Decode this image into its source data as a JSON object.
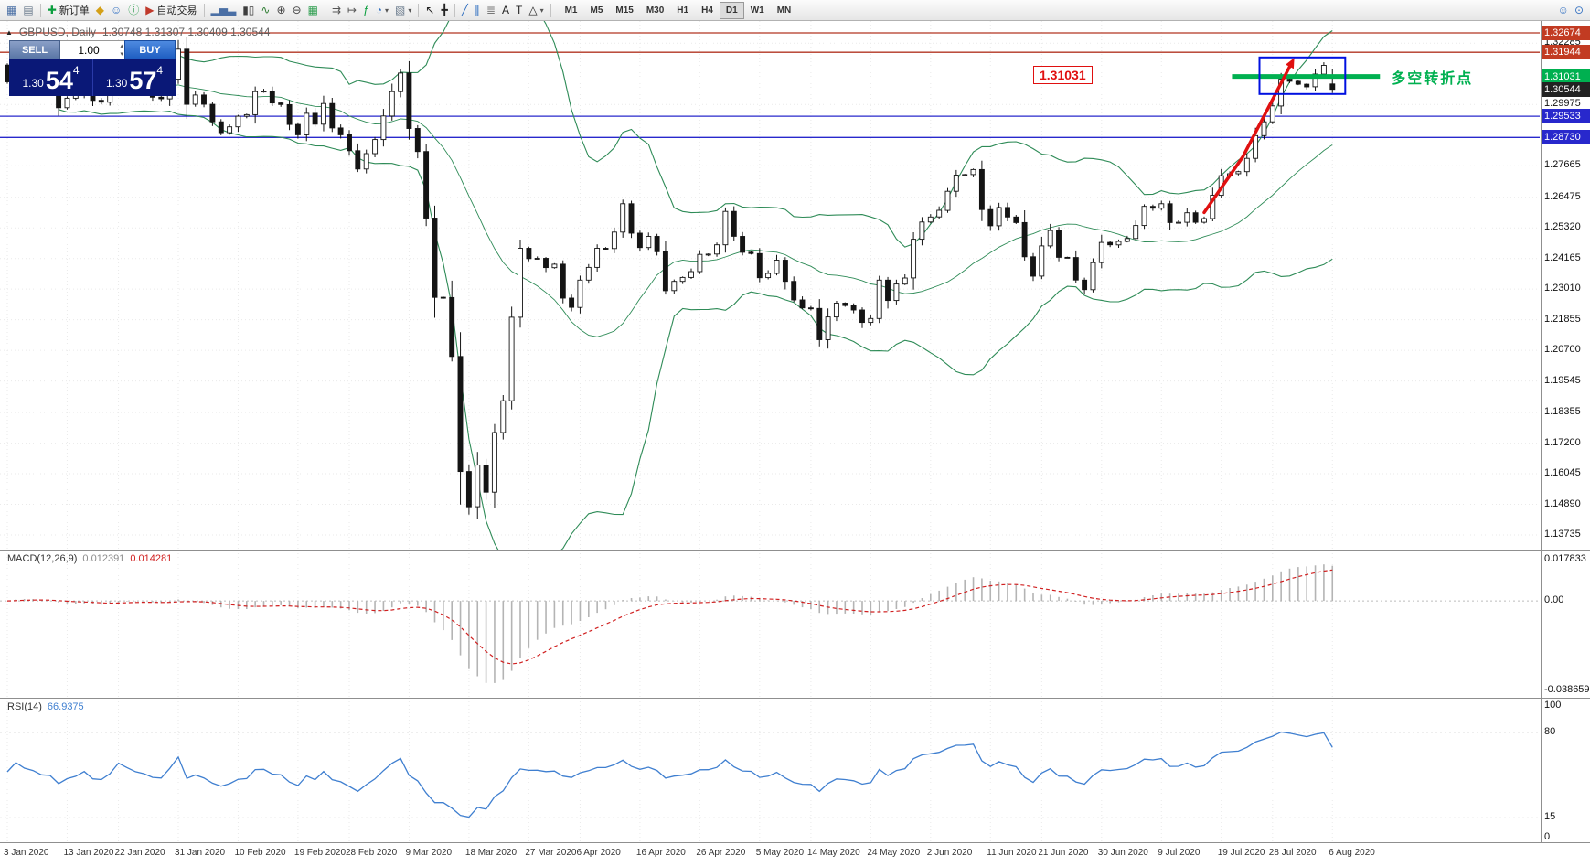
{
  "glyphs": {
    "collapse": "▲",
    "caret_down": "▾",
    "spinner_up": "▴",
    "spinner_down": "▾"
  },
  "toolbar": {
    "items": [
      {
        "name": "new-chart-icon",
        "glyph": "▦",
        "color": "#4a6fa5"
      },
      {
        "name": "profiles-icon",
        "glyph": "▤",
        "color": "#6b7b8d"
      },
      {
        "name": "separator"
      },
      {
        "name": "new-order-button",
        "glyph": "✚",
        "color": "#0b9e3e",
        "label": "新订单"
      },
      {
        "name": "metaeditor-icon",
        "glyph": "◆",
        "color": "#d4a017"
      },
      {
        "name": "community-icon",
        "glyph": "☺",
        "color": "#3b76c4"
      },
      {
        "name": "info-icon",
        "glyph": "ⓘ",
        "color": "#2e9e4f"
      },
      {
        "name": "autotrading-button",
        "glyph": "▶",
        "color": "#c0392b",
        "label": "自动交易"
      },
      {
        "name": "separator"
      },
      {
        "name": "bar-chart-icon",
        "glyph": "▂▅▃",
        "color": "#4a6fa5"
      },
      {
        "name": "candlestick-chart-icon",
        "glyph": "▮▯",
        "color": "#3d3d3d"
      },
      {
        "name": "line-chart-icon",
        "glyph": "∿",
        "color": "#2e7d32"
      },
      {
        "name": "zoom-in-icon",
        "glyph": "⊕",
        "color": "#444444"
      },
      {
        "name": "zoom-out-icon",
        "glyph": "⊖",
        "color": "#444444"
      },
      {
        "name": "tile-windows-icon",
        "glyph": "▦",
        "color": "#2e9e4f"
      },
      {
        "name": "separator"
      },
      {
        "name": "auto-scroll-icon",
        "glyph": "⇉",
        "color": "#555555"
      },
      {
        "name": "chart-shift-icon",
        "glyph": "↦",
        "color": "#555555"
      },
      {
        "name": "indicators-icon",
        "glyph": "ƒ",
        "color": "#0b9e3e"
      },
      {
        "name": "periods-icon",
        "glyph": "◔",
        "color": "#2f6fc0",
        "caret": true
      },
      {
        "name": "templates-icon",
        "glyph": "▧",
        "color": "#6b7b8d",
        "caret": true
      },
      {
        "name": "separator"
      },
      {
        "name": "cursor-icon",
        "glyph": "↖",
        "color": "#222222"
      },
      {
        "name": "crosshair-icon",
        "glyph": "╋",
        "color": "#222222"
      },
      {
        "name": "separator"
      },
      {
        "name": "trendline-icon",
        "glyph": "╱",
        "color": "#2f6fc0"
      },
      {
        "name": "channel-icon",
        "glyph": "∥",
        "color": "#2f6fc0"
      },
      {
        "name": "fibonacci-icon",
        "glyph": "≣",
        "color": "#777777"
      },
      {
        "name": "text-icon",
        "glyph": "A",
        "color": "#222222"
      },
      {
        "name": "label-icon",
        "glyph": "T",
        "color": "#222222"
      },
      {
        "name": "shapes-icon",
        "glyph": "△",
        "color": "#222222",
        "caret": true
      },
      {
        "name": "separator"
      }
    ],
    "timeframes": [
      "M1",
      "M5",
      "M15",
      "M30",
      "H1",
      "H4",
      "D1",
      "W1",
      "MN"
    ],
    "active_timeframe": "D1",
    "right_items": [
      {
        "name": "community-person-icon",
        "glyph": "☺",
        "color": "#3b76c4"
      },
      {
        "name": "search-icon",
        "glyph": "⊙",
        "color": "#3b76c4"
      }
    ]
  },
  "chart_window": {
    "title": "GBPUSD, Daily",
    "ohlc": "1.30748 1.31307 1.30409 1.30544"
  },
  "trade_panel": {
    "sell_label": "SELL",
    "buy_label": "BUY",
    "volume": "1.00",
    "sell": {
      "prefix": "1.30",
      "big": "54",
      "sup": "4"
    },
    "buy": {
      "prefix": "1.30",
      "big": "57",
      "sup": "4"
    }
  },
  "price_scale": {
    "plain_ticks": [
      "1.32285",
      "1.29975",
      "1.27665",
      "1.26475",
      "1.25320",
      "1.24165",
      "1.23010",
      "1.21855",
      "1.20700",
      "1.19545",
      "1.18355",
      "1.17200",
      "1.16045",
      "1.14890",
      "1.13735"
    ],
    "tags": [
      {
        "value": "1.32674",
        "type": "resistance",
        "color": "#c23b22"
      },
      {
        "value": "1.31944",
        "type": "resistance",
        "color": "#c23b22"
      },
      {
        "value": "1.31031",
        "type": "pivot",
        "color": "#00b050"
      },
      {
        "value": "1.30544",
        "type": "current-price",
        "color": "#222222"
      },
      {
        "value": "1.29533",
        "type": "support",
        "color": "#2828cc"
      },
      {
        "value": "1.28730",
        "type": "support",
        "color": "#2828cc"
      }
    ]
  },
  "indicators": {
    "macd": {
      "name": "MACD(12,26,9)",
      "value_main": "0.012391",
      "value_signal": "0.014281",
      "scale_labels": [
        "0.017833",
        "0.00",
        "-0.038659"
      ],
      "histogram_color": "#b4b4b4",
      "signal_color": "#d02020"
    },
    "rsi": {
      "name": "RSI(14)",
      "value": "66.9375",
      "scale_labels": [
        "100",
        "80",
        "15",
        "0"
      ],
      "levels": [
        80,
        15
      ],
      "line_color": "#3f7fd0"
    }
  },
  "time_axis": {
    "labels": [
      "3 Jan 2020",
      "13 Jan 2020",
      "22 Jan 2020",
      "31 Jan 2020",
      "10 Feb 2020",
      "19 Feb 2020",
      "28 Feb 2020",
      "9 Mar 2020",
      "18 Mar 2020",
      "27 Mar 2020",
      "6 Apr 2020",
      "16 Apr 2020",
      "26 Apr 2020",
      "5 May 2020",
      "14 May 2020",
      "24 May 2020",
      "2 Jun 2020",
      "11 Jun 2020",
      "21 Jun 2020",
      "30 Jun 2020",
      "9 Jul 2020",
      "19 Jul 2020",
      "28 Jul 2020",
      "6 Aug 2020"
    ]
  },
  "chart_data": {
    "type": "candlestick",
    "symbol": "GBPUSD",
    "timeframe": "Daily",
    "window_ohlc": {
      "open": "1.30748",
      "high": "1.31307",
      "low": "1.30409",
      "close": "1.30544"
    },
    "price_range": [
      1.13735,
      1.32674
    ],
    "first_open": 1.3146,
    "closes": [
      1.3083,
      1.3167,
      1.3123,
      1.3103,
      1.3066,
      1.306,
      1.2985,
      1.3021,
      1.3039,
      1.3076,
      1.3013,
      1.3006,
      1.3049,
      1.3142,
      1.3107,
      1.3073,
      1.3056,
      1.3025,
      1.3019,
      1.3093,
      1.3206,
      1.2998,
      1.3033,
      1.2998,
      1.2932,
      1.2891,
      1.2913,
      1.2953,
      1.2959,
      1.3046,
      1.3048,
      1.3003,
      1.2997,
      1.2922,
      1.2883,
      1.2964,
      1.2923,
      1.3001,
      1.2909,
      1.2883,
      1.2823,
      1.2754,
      1.2812,
      1.2865,
      1.2954,
      1.3046,
      1.3116,
      1.2907,
      1.282,
      1.2569,
      1.227,
      1.2269,
      1.2047,
      1.1613,
      1.148,
      1.1637,
      1.1535,
      1.176,
      1.188,
      1.2195,
      1.2455,
      1.2416,
      1.2417,
      1.2382,
      1.2395,
      1.2267,
      1.2232,
      1.2335,
      1.2383,
      1.2455,
      1.2454,
      1.2516,
      1.2623,
      1.2512,
      1.2458,
      1.25,
      1.2442,
      1.2295,
      1.233,
      1.2345,
      1.2367,
      1.2432,
      1.2433,
      1.2468,
      1.2594,
      1.25,
      1.244,
      1.2435,
      1.2344,
      1.236,
      1.241,
      1.233,
      1.226,
      1.223,
      1.2228,
      1.211,
      1.2196,
      1.2248,
      1.2239,
      1.2222,
      1.2175,
      1.219,
      1.2335,
      1.2258,
      1.232,
      1.2343,
      1.2489,
      1.2554,
      1.2573,
      1.2598,
      1.267,
      1.2731,
      1.2733,
      1.2752,
      1.2601,
      1.254,
      1.2609,
      1.2573,
      1.2552,
      1.2423,
      1.235,
      1.2464,
      1.2522,
      1.2421,
      1.242,
      1.2335,
      1.2299,
      1.2401,
      1.2477,
      1.2468,
      1.2481,
      1.2492,
      1.2541,
      1.2613,
      1.2606,
      1.2623,
      1.2552,
      1.2553,
      1.2589,
      1.2553,
      1.2567,
      1.2655,
      1.2729,
      1.2736,
      1.2744,
      1.2794,
      1.288,
      1.2932,
      1.2992,
      1.3093,
      1.3085,
      1.3074,
      1.3064,
      1.3112,
      1.3145,
      1.30544
    ],
    "last_ohlc": [
      1.30748,
      1.31307,
      1.30409,
      1.30544
    ],
    "overlays": {
      "bollinger_period": 20,
      "bollinger_deviation": 2,
      "band_color": "#2e8b57"
    },
    "annotations": {
      "resistance_lines": [
        1.32674,
        1.31944
      ],
      "support_lines": [
        1.29533,
        1.2873
      ],
      "pivot_line": {
        "price": 1.31031,
        "color": "#00b050",
        "width": 5,
        "left_overhang": 30,
        "right_overhang": 38
      },
      "trend_arrow": {
        "from_bar": 140,
        "from_price": 1.259,
        "to_bar": 150,
        "to_price": 1.314,
        "mid_ratio": [
          0.45,
          0.38
        ],
        "color": "#e01010",
        "width": 3.5
      },
      "consolidation_box": {
        "from_bar": 147,
        "to_bar": 156.5,
        "top_price": 1.3175,
        "bottom_price": 1.3037,
        "color": "#0010e0",
        "width": 2
      },
      "pivot_price_label": "1.31031",
      "pivot_text": "多空转折点"
    }
  }
}
